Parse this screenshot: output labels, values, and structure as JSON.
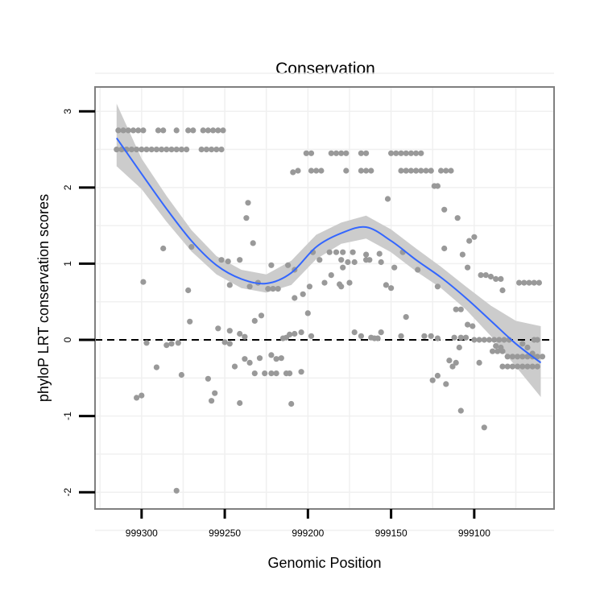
{
  "chart_data": {
    "type": "scatter",
    "title": "Conservation",
    "xlabel": "Genomic Position",
    "ylabel": "phyloP LRT conservation scores",
    "x_reversed": true,
    "xlim": [
      999328,
      999052
    ],
    "ylim": [
      -2.22,
      3.32
    ],
    "x_ticks": [
      999300,
      999250,
      999200,
      999150,
      999100
    ],
    "x_tick_labels": [
      "999300",
      "999250",
      "999200",
      "999150",
      "999100"
    ],
    "y_ticks": [
      -2,
      -1,
      0,
      1,
      2,
      3
    ],
    "y_tick_labels": [
      "-2",
      "-1",
      "0",
      "1",
      "2",
      "3"
    ],
    "reference_line": {
      "y": 0,
      "style": "dashed"
    },
    "colors": {
      "points": "#999999",
      "smooth_line": "#3366ff",
      "confidence_band": "#cccccc",
      "panel_border": "#7f7f7f",
      "grid": "#f0f0f0"
    },
    "series": [
      {
        "name": "scores",
        "points": [
          [
            999314,
            2.75
          ],
          [
            999311,
            2.75
          ],
          [
            999308,
            2.75
          ],
          [
            999305,
            2.75
          ],
          [
            999302,
            2.75
          ],
          [
            999299,
            2.75
          ],
          [
            999290,
            2.75
          ],
          [
            999287,
            2.75
          ],
          [
            999279,
            2.75
          ],
          [
            999272,
            2.75
          ],
          [
            999269,
            2.75
          ],
          [
            999263,
            2.75
          ],
          [
            999260,
            2.75
          ],
          [
            999257,
            2.75
          ],
          [
            999254,
            2.75
          ],
          [
            999251,
            2.75
          ],
          [
            999315,
            2.5
          ],
          [
            999312,
            2.5
          ],
          [
            999309,
            2.5
          ],
          [
            999306,
            2.5
          ],
          [
            999303,
            2.5
          ],
          [
            999300,
            2.5
          ],
          [
            999297,
            2.5
          ],
          [
            999294,
            2.5
          ],
          [
            999291,
            2.5
          ],
          [
            999288,
            2.5
          ],
          [
            999285,
            2.5
          ],
          [
            999282,
            2.5
          ],
          [
            999279,
            2.5
          ],
          [
            999276,
            2.5
          ],
          [
            999273,
            2.5
          ],
          [
            999264,
            2.5
          ],
          [
            999261,
            2.5
          ],
          [
            999258,
            2.5
          ],
          [
            999255,
            2.5
          ],
          [
            999252,
            2.5
          ],
          [
            999201,
            2.45
          ],
          [
            999198,
            2.45
          ],
          [
            999186,
            2.45
          ],
          [
            999183,
            2.45
          ],
          [
            999180,
            2.45
          ],
          [
            999177,
            2.45
          ],
          [
            999168,
            2.45
          ],
          [
            999165,
            2.45
          ],
          [
            999150,
            2.45
          ],
          [
            999147,
            2.45
          ],
          [
            999144,
            2.45
          ],
          [
            999141,
            2.45
          ],
          [
            999138,
            2.45
          ],
          [
            999135,
            2.45
          ],
          [
            999132,
            2.45
          ],
          [
            999209,
            2.2
          ],
          [
            999206,
            2.22
          ],
          [
            999198,
            2.22
          ],
          [
            999195,
            2.22
          ],
          [
            999192,
            2.22
          ],
          [
            999177,
            2.22
          ],
          [
            999168,
            2.22
          ],
          [
            999165,
            2.22
          ],
          [
            999162,
            2.22
          ],
          [
            999144,
            2.22
          ],
          [
            999141,
            2.22
          ],
          [
            999138,
            2.22
          ],
          [
            999135,
            2.22
          ],
          [
            999132,
            2.22
          ],
          [
            999129,
            2.22
          ],
          [
            999126,
            2.22
          ],
          [
            999120,
            2.22
          ],
          [
            999117,
            2.22
          ],
          [
            999114,
            2.22
          ],
          [
            999141,
            2.22
          ],
          [
            999135,
            2.22
          ],
          [
            999126,
            2.22
          ],
          [
            999124,
            2.02
          ],
          [
            999122,
            2.02
          ],
          [
            999152,
            1.85
          ],
          [
            999236,
            1.8
          ],
          [
            999237,
            1.6
          ],
          [
            999233,
            1.27
          ],
          [
            999270,
            1.22
          ],
          [
            999287,
            1.2
          ],
          [
            999222,
            0.98
          ],
          [
            999212,
            0.98
          ],
          [
            999208,
            0.92
          ],
          [
            999197,
            1.15
          ],
          [
            999193,
            1.05
          ],
          [
            999187,
            1.15
          ],
          [
            999183,
            1.15
          ],
          [
            999179,
            1.15
          ],
          [
            999173,
            1.15
          ],
          [
            999165,
            1.12
          ],
          [
            999157,
            1.13
          ],
          [
            999143,
            1.15
          ],
          [
            999180,
            1.05
          ],
          [
            999179,
            0.95
          ],
          [
            999176,
            1.02
          ],
          [
            999172,
            1.02
          ],
          [
            999165,
            1.05
          ],
          [
            999163,
            1.05
          ],
          [
            999156,
            1.02
          ],
          [
            999181,
            0.73
          ],
          [
            999199,
            0.7
          ],
          [
            999208,
            0.55
          ],
          [
            999203,
            0.6
          ],
          [
            999200,
            0.35
          ],
          [
            999141,
            0.3
          ],
          [
            999148,
            0.95
          ],
          [
            999134,
            0.92
          ],
          [
            999118,
            1.71
          ],
          [
            999110,
            1.6
          ],
          [
            999103,
            1.3
          ],
          [
            999100,
            1.35
          ],
          [
            999118,
            1.2
          ],
          [
            999107,
            1.12
          ],
          [
            999104,
            0.95
          ],
          [
            999122,
            0.7
          ],
          [
            999111,
            0.4
          ],
          [
            999108,
            0.4
          ],
          [
            999104,
            0.2
          ],
          [
            999101,
            0.18
          ],
          [
            999248,
            1.03
          ],
          [
            999252,
            1.05
          ],
          [
            999241,
            1.05
          ],
          [
            999247,
            0.72
          ],
          [
            999235,
            0.7
          ],
          [
            999230,
            0.75
          ],
          [
            999224,
            0.67
          ],
          [
            999221,
            0.67
          ],
          [
            999218,
            0.67
          ],
          [
            999272,
            0.65
          ],
          [
            999299,
            0.76
          ],
          [
            999271,
            0.24
          ],
          [
            999254,
            0.15
          ],
          [
            999247,
            0.12
          ],
          [
            999241,
            0.08
          ],
          [
            999238,
            0.04
          ],
          [
            999232,
            0.25
          ],
          [
            999228,
            0.32
          ],
          [
            999215,
            0.02
          ],
          [
            999213,
            0.03
          ],
          [
            999211,
            0.07
          ],
          [
            999208,
            0.08
          ],
          [
            999204,
            0.1
          ],
          [
            999198,
            0.05
          ],
          [
            999190,
            0.75
          ],
          [
            999186,
            0.85
          ],
          [
            999180,
            0.7
          ],
          [
            999175,
            0.75
          ],
          [
            999172,
            0.1
          ],
          [
            999168,
            0.05
          ],
          [
            999162,
            0.03
          ],
          [
            999160,
            0.02
          ],
          [
            999158,
            0.02
          ],
          [
            999156,
            0.1
          ],
          [
            999153,
            0.72
          ],
          [
            999150,
            0.68
          ],
          [
            999144,
            0.05
          ],
          [
            999130,
            0.05
          ],
          [
            999126,
            0.05
          ],
          [
            999122,
            0.02
          ],
          [
            999112,
            0.03
          ],
          [
            999109,
            -0.1
          ],
          [
            999303,
            -0.76
          ],
          [
            999300,
            -0.73
          ],
          [
            999291,
            -0.36
          ],
          [
            999285,
            -0.07
          ],
          [
            999282,
            -0.05
          ],
          [
            999278,
            -0.04
          ],
          [
            999276,
            -0.46
          ],
          [
            999279,
            -1.98
          ],
          [
            999297,
            -0.04
          ],
          [
            999260,
            -0.51
          ],
          [
            999258,
            -0.8
          ],
          [
            999256,
            -0.7
          ],
          [
            999250,
            -0.03
          ],
          [
            999247,
            -0.05
          ],
          [
            999244,
            -0.35
          ],
          [
            999241,
            -0.83
          ],
          [
            999238,
            -0.25
          ],
          [
            999235,
            -0.3
          ],
          [
            999232,
            -0.44
          ],
          [
            999229,
            -0.24
          ],
          [
            999226,
            -0.44
          ],
          [
            999222,
            -0.44
          ],
          [
            999219,
            -0.44
          ],
          [
            999213,
            -0.44
          ],
          [
            999211,
            -0.44
          ],
          [
            999222,
            -0.2
          ],
          [
            999219,
            -0.25
          ],
          [
            999216,
            -0.24
          ],
          [
            999210,
            -0.84
          ],
          [
            999204,
            -0.42
          ],
          [
            999125,
            -0.53
          ],
          [
            999122,
            -0.47
          ],
          [
            999117,
            -0.58
          ],
          [
            999113,
            -0.35
          ],
          [
            999111,
            -0.3
          ],
          [
            999115,
            -0.27
          ],
          [
            999108,
            -0.93
          ],
          [
            999094,
            -1.15
          ],
          [
            999096,
            0.85
          ],
          [
            999093,
            0.85
          ],
          [
            999090,
            0.83
          ],
          [
            999087,
            0.8
          ],
          [
            999084,
            0.8
          ],
          [
            999073,
            0.75
          ],
          [
            999070,
            0.75
          ],
          [
            999067,
            0.75
          ],
          [
            999064,
            0.75
          ],
          [
            999061,
            0.75
          ],
          [
            999083,
            0.65
          ],
          [
            999108,
            0.03
          ],
          [
            999105,
            0.03
          ],
          [
            999100,
            0.0
          ],
          [
            999097,
            0.0
          ],
          [
            999094,
            0.0
          ],
          [
            999091,
            0.0
          ],
          [
            999088,
            0.0
          ],
          [
            999085,
            0.0
          ],
          [
            999082,
            0.0
          ],
          [
            999079,
            0.0
          ],
          [
            999064,
            0.0
          ],
          [
            999062,
            0.0
          ],
          [
            999089,
            -0.15
          ],
          [
            999086,
            -0.15
          ],
          [
            999083,
            -0.15
          ],
          [
            999080,
            -0.22
          ],
          [
            999077,
            -0.22
          ],
          [
            999074,
            -0.22
          ],
          [
            999071,
            -0.22
          ],
          [
            999068,
            -0.22
          ],
          [
            999065,
            -0.22
          ],
          [
            999062,
            -0.22
          ],
          [
            999059,
            -0.22
          ],
          [
            999083,
            -0.35
          ],
          [
            999080,
            -0.35
          ],
          [
            999077,
            -0.35
          ],
          [
            999074,
            -0.35
          ],
          [
            999071,
            -0.35
          ],
          [
            999068,
            -0.35
          ],
          [
            999065,
            -0.35
          ],
          [
            999062,
            -0.35
          ],
          [
            999097,
            -0.3
          ],
          [
            999087,
            -0.08
          ],
          [
            999084,
            -0.1
          ],
          [
            999071,
            -0.05
          ],
          [
            999068,
            -0.1
          ],
          [
            999065,
            -0.18
          ]
        ]
      }
    ],
    "smooth": {
      "x": [
        999315,
        999300,
        999285,
        999270,
        999255,
        999240,
        999225,
        999210,
        999195,
        999180,
        999165,
        999150,
        999135,
        999120,
        999105,
        999090,
        999075,
        999060
      ],
      "y": [
        2.65,
        2.18,
        1.72,
        1.3,
        0.98,
        0.8,
        0.74,
        0.88,
        1.22,
        1.4,
        1.48,
        1.3,
        1.05,
        0.82,
        0.55,
        0.25,
        -0.05,
        -0.3
      ],
      "lower": [
        2.28,
        1.98,
        1.55,
        1.16,
        0.86,
        0.68,
        0.62,
        0.72,
        1.06,
        1.26,
        1.33,
        1.15,
        0.9,
        0.68,
        0.4,
        0.05,
        -0.35,
        -0.75
      ],
      "upper": [
        3.1,
        2.38,
        1.89,
        1.44,
        1.1,
        0.92,
        0.86,
        1.04,
        1.38,
        1.54,
        1.63,
        1.45,
        1.2,
        0.96,
        0.7,
        0.45,
        0.25,
        0.18
      ]
    }
  }
}
